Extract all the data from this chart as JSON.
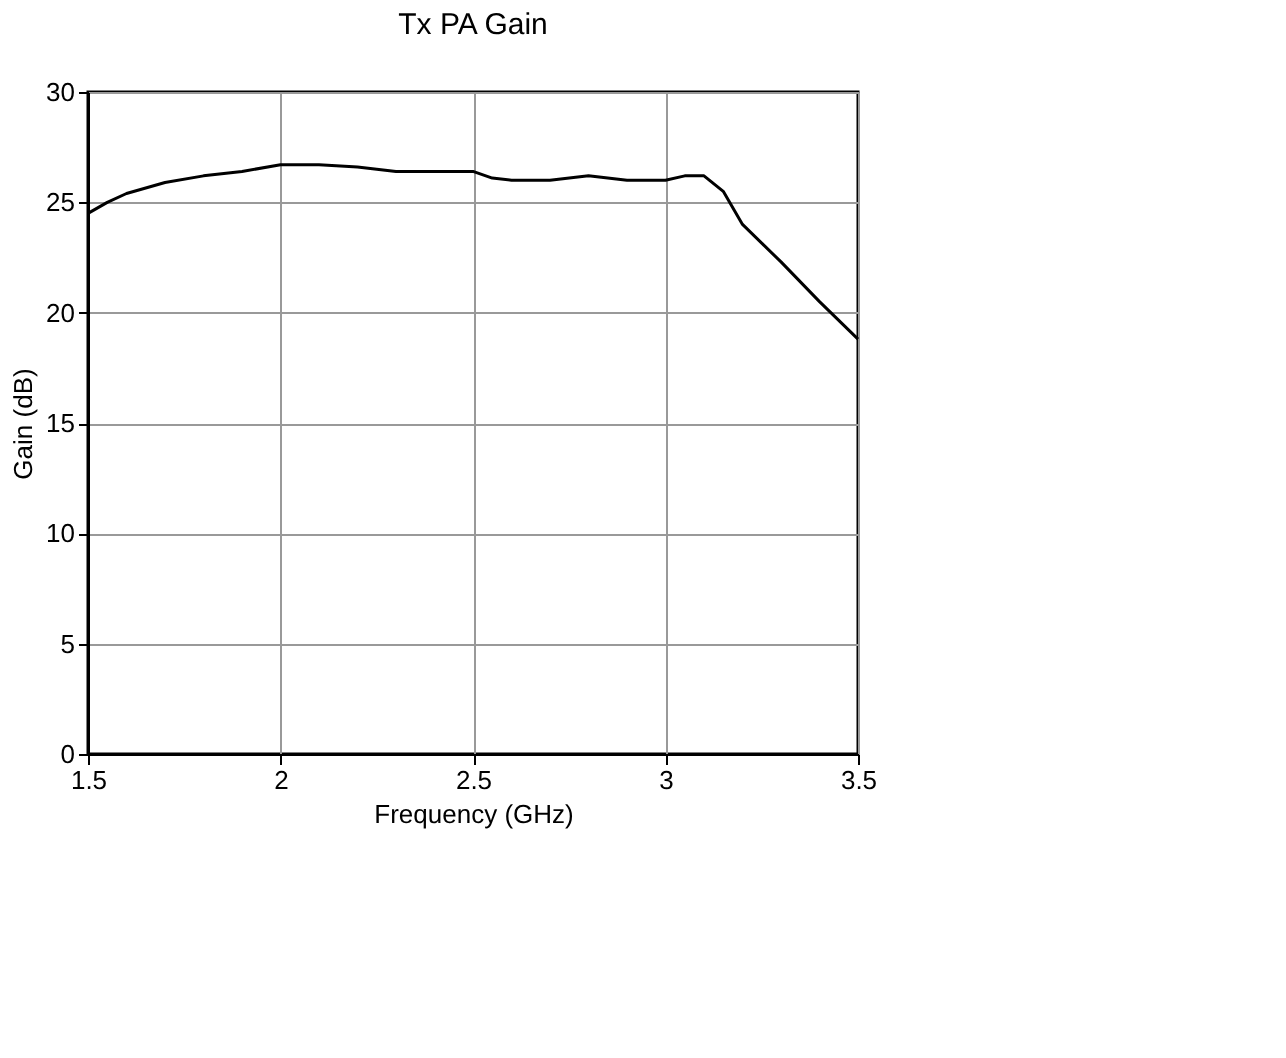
{
  "chart_data": {
    "type": "line",
    "title": "Tx PA Gain",
    "xlabel": "Frequency (GHz)",
    "ylabel": "Gain (dB)",
    "x": [
      1.5,
      1.55,
      1.6,
      1.7,
      1.8,
      1.9,
      2.0,
      2.1,
      2.2,
      2.3,
      2.4,
      2.5,
      2.55,
      2.6,
      2.7,
      2.8,
      2.9,
      3.0,
      3.05,
      3.1,
      3.15,
      3.2,
      3.3,
      3.4,
      3.5
    ],
    "series": [
      {
        "color": "#000000",
        "values": [
          24.5,
          25.0,
          25.4,
          25.9,
          26.2,
          26.4,
          26.7,
          26.7,
          26.6,
          26.4,
          26.4,
          26.4,
          26.1,
          26.0,
          26.0,
          26.2,
          26.0,
          26.0,
          26.2,
          26.2,
          25.5,
          24.0,
          22.3,
          20.5,
          18.8
        ]
      }
    ],
    "xlim": [
      1.5,
      3.5
    ],
    "xticks": [
      1.5,
      2,
      2.5,
      3,
      3.5
    ],
    "ylim": [
      0,
      30
    ],
    "yticks": [
      0,
      5,
      10,
      15,
      20,
      25,
      30
    ],
    "grid": true,
    "marker": "none",
    "line_style": "solid"
  }
}
